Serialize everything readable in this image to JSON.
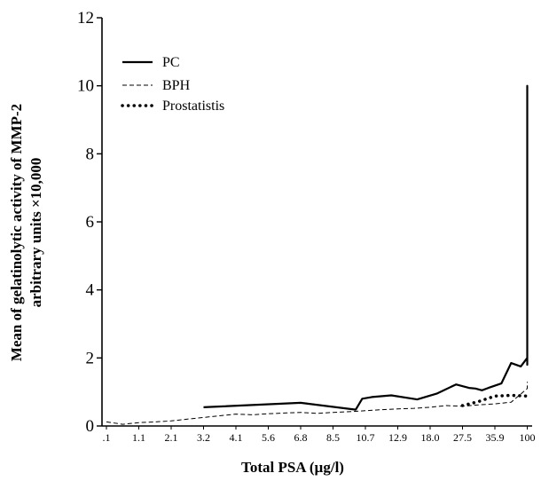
{
  "chart_data": {
    "type": "line",
    "title": "",
    "xlabel": "Total PSA (µg/l)",
    "ylabel_line1": "Mean of gelatinolytic activity of MMP-2",
    "ylabel_line2": "arbitrary units ×10,000",
    "x_tick_labels": [
      ".1",
      "1.1",
      "2.1",
      "3.2",
      "4.1",
      "5.6",
      "6.8",
      "8.5",
      "10.7",
      "12.9",
      "18.0",
      "27.5",
      "35.9",
      "100"
    ],
    "ylim": [
      0,
      12
    ],
    "y_ticks": [
      0,
      2,
      4,
      6,
      8,
      10,
      12
    ],
    "legend_position": "top-left",
    "series": [
      {
        "name": "PC",
        "style": "solid",
        "x": [
          3.0,
          6.0,
          7.7,
          7.9,
          8.2,
          8.8,
          9.6,
          10.2,
          10.8,
          11.2,
          11.4,
          11.6,
          11.8,
          12.2,
          12.5,
          12.8,
          13.1,
          13.5,
          13.9,
          14.15,
          14.4,
          14.65,
          14.9,
          15.05,
          15.2,
          15.5,
          15.7
        ],
        "y": [
          0.55,
          0.68,
          0.48,
          0.8,
          0.85,
          0.9,
          0.78,
          0.95,
          1.22,
          1.12,
          1.1,
          1.05,
          1.12,
          1.25,
          1.85,
          1.75,
          2.0,
          2.35,
          1.85,
          1.8,
          2.65,
          10.0,
          7.0,
          5.95,
          6.5,
          7.2,
          7.6
        ]
      },
      {
        "name": "BPH",
        "style": "dashed",
        "x": [
          0.0,
          0.5,
          1.0,
          1.5,
          2.0,
          2.5,
          3.0,
          3.5,
          4.0,
          4.5,
          5.0,
          5.5,
          6.0,
          6.5,
          7.0,
          7.5,
          8.0,
          8.5,
          9.0,
          9.5,
          10.0,
          10.5,
          11.0,
          11.5,
          12.0,
          12.5,
          13.0,
          13.4
        ],
        "y": [
          0.12,
          0.05,
          0.1,
          0.12,
          0.15,
          0.2,
          0.25,
          0.3,
          0.35,
          0.33,
          0.36,
          0.38,
          0.4,
          0.37,
          0.4,
          0.42,
          0.45,
          0.48,
          0.5,
          0.52,
          0.55,
          0.6,
          0.58,
          0.62,
          0.65,
          0.7,
          1.1,
          1.3
        ]
      },
      {
        "name": "Prostatistis",
        "style": "dotted",
        "x": [
          11.0,
          11.5,
          12.0,
          12.5,
          13.0,
          13.5,
          14.0
        ],
        "y": [
          0.6,
          0.72,
          0.88,
          0.9,
          0.88,
          0.87,
          0.85
        ]
      }
    ]
  }
}
